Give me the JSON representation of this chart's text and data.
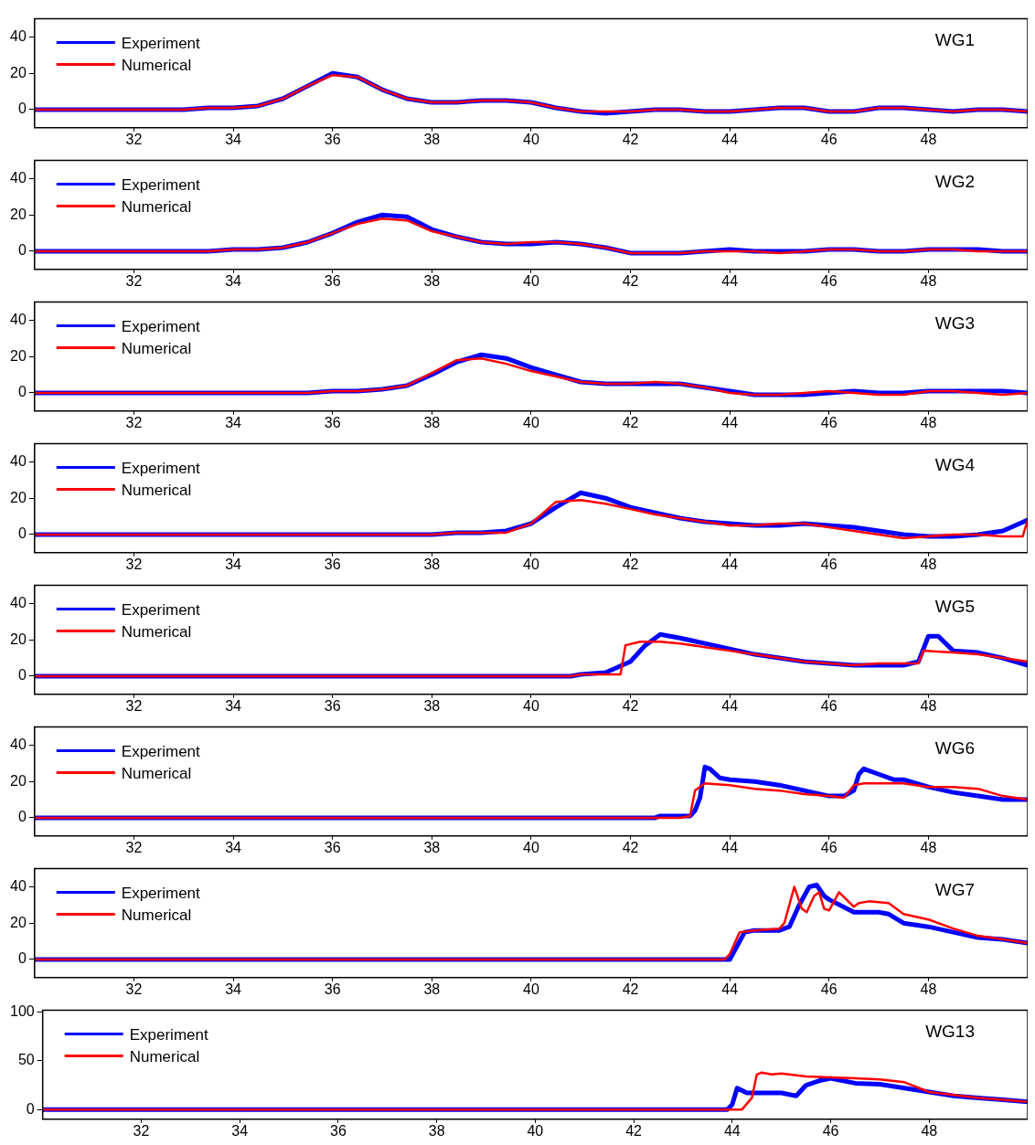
{
  "chart_data": [
    {
      "type": "line",
      "annotations": [
        "WG1"
      ],
      "x": [
        30,
        30.5,
        31,
        31.5,
        32,
        32.5,
        33,
        33.5,
        34,
        34.5,
        35,
        35.5,
        36,
        36.5,
        37,
        37.5,
        38,
        38.5,
        39,
        39.5,
        40,
        40.5,
        41,
        41.5,
        42,
        42.5,
        43,
        43.5,
        44,
        44.5,
        45,
        45.5,
        46,
        46.5,
        47,
        47.5,
        48,
        48.5,
        49,
        49.5,
        50
      ],
      "xlim": [
        30,
        50
      ],
      "xticks": [
        32,
        34,
        36,
        38,
        40,
        42,
        44,
        46,
        48
      ],
      "ylim": [
        -10,
        50
      ],
      "yticks": [
        0,
        20,
        40
      ],
      "grid": false,
      "legend": "top left",
      "marker": "none",
      "line_style": "solid",
      "series": [
        {
          "name": "Experiment",
          "color": "#0000ff",
          "values": [
            0,
            0,
            0,
            0,
            0,
            0,
            0,
            1,
            1,
            2,
            6,
            13,
            20,
            18,
            11,
            6,
            4,
            4,
            5,
            5,
            4,
            1,
            -1,
            -2,
            -1,
            0,
            0,
            -1,
            -1,
            0,
            1,
            1,
            -1,
            -1,
            1,
            1,
            0,
            -1,
            0,
            0,
            -1
          ]
        },
        {
          "name": "Numerical",
          "color": "#ff0000",
          "values": [
            0,
            0,
            0,
            0,
            0,
            0,
            0,
            1,
            1,
            2,
            6,
            13,
            19,
            18,
            11,
            6,
            4,
            4,
            5,
            5,
            4,
            1,
            -1,
            -1,
            -1,
            0,
            0,
            -1,
            -1,
            0,
            1,
            1,
            -1,
            -1,
            1,
            1,
            0,
            -1,
            0,
            0,
            -1
          ]
        }
      ]
    },
    {
      "type": "line",
      "annotations": [
        "WG2"
      ],
      "x": [
        30,
        30.5,
        31,
        31.5,
        32,
        32.5,
        33,
        33.5,
        34,
        34.5,
        35,
        35.5,
        36,
        36.5,
        37,
        37.5,
        38,
        38.5,
        39,
        39.5,
        40,
        40.5,
        41,
        41.5,
        42,
        42.5,
        43,
        43.5,
        44,
        44.5,
        45,
        45.5,
        46,
        46.5,
        47,
        47.5,
        48,
        48.5,
        49,
        49.5,
        50
      ],
      "xlim": [
        30,
        50
      ],
      "xticks": [
        32,
        34,
        36,
        38,
        40,
        42,
        44,
        46,
        48
      ],
      "ylim": [
        -10,
        50
      ],
      "yticks": [
        0,
        20,
        40
      ],
      "grid": false,
      "legend": "top left",
      "marker": "none",
      "line_style": "solid",
      "series": [
        {
          "name": "Experiment",
          "color": "#0000ff",
          "values": [
            0,
            0,
            0,
            0,
            0,
            0,
            0,
            0,
            1,
            1,
            2,
            5,
            10,
            16,
            20,
            19,
            12,
            8,
            5,
            4,
            4,
            5,
            4,
            2,
            -1,
            -1,
            -1,
            0,
            1,
            0,
            0,
            0,
            1,
            1,
            0,
            0,
            1,
            1,
            1,
            0,
            0
          ]
        },
        {
          "name": "Numerical",
          "color": "#ff0000",
          "values": [
            0,
            0,
            0,
            0,
            0,
            0,
            0,
            0,
            1,
            1,
            2,
            5,
            10,
            15,
            18,
            17,
            11,
            8,
            5,
            4,
            5,
            5,
            4,
            2,
            -1,
            -1,
            -1,
            0,
            0,
            0,
            -1,
            0,
            1,
            1,
            0,
            0,
            1,
            1,
            0,
            0,
            0
          ]
        }
      ]
    },
    {
      "type": "line",
      "annotations": [
        "WG3"
      ],
      "x": [
        30,
        30.5,
        31,
        31.5,
        32,
        32.5,
        33,
        33.5,
        34,
        34.5,
        35,
        35.5,
        36,
        36.5,
        37,
        37.5,
        38,
        38.5,
        39,
        39.5,
        40,
        40.5,
        41,
        41.5,
        42,
        42.5,
        43,
        43.5,
        44,
        44.5,
        45,
        45.5,
        46,
        46.5,
        47,
        47.5,
        48,
        48.5,
        49,
        49.5,
        50
      ],
      "xlim": [
        30,
        50
      ],
      "xticks": [
        32,
        34,
        36,
        38,
        40,
        42,
        44,
        46,
        48
      ],
      "ylim": [
        -10,
        50
      ],
      "yticks": [
        0,
        20,
        40
      ],
      "grid": false,
      "legend": "top left",
      "marker": "none",
      "line_style": "solid",
      "series": [
        {
          "name": "Experiment",
          "color": "#0000ff",
          "values": [
            0,
            0,
            0,
            0,
            0,
            0,
            0,
            0,
            0,
            0,
            0,
            0,
            1,
            1,
            2,
            4,
            10,
            17,
            21,
            19,
            14,
            10,
            6,
            5,
            5,
            5,
            5,
            3,
            1,
            -1,
            -1,
            -1,
            0,
            1,
            0,
            0,
            1,
            1,
            1,
            1,
            0
          ]
        },
        {
          "name": "Numerical",
          "color": "#ff0000",
          "values": [
            0,
            0,
            0,
            0,
            0,
            0,
            0,
            0,
            0,
            0,
            0,
            0,
            1,
            1,
            2,
            4,
            11,
            18,
            19,
            16,
            12,
            9,
            6,
            5,
            5,
            6,
            5,
            3,
            0,
            -1,
            -1,
            0,
            1,
            0,
            -1,
            -1,
            1,
            1,
            0,
            -1,
            0
          ]
        }
      ]
    },
    {
      "type": "line",
      "annotations": [
        "WG4"
      ],
      "xlim": [
        30,
        50
      ],
      "xticks": [
        32,
        34,
        36,
        38,
        40,
        42,
        44,
        46,
        48
      ],
      "ylim": [
        -10,
        50
      ],
      "yticks": [
        0,
        20,
        40
      ],
      "grid": false,
      "legend": "top left",
      "marker": "none",
      "line_style": "solid",
      "series": [
        {
          "name": "Experiment",
          "color": "#0000ff",
          "x": [
            30,
            38,
            38.5,
            39,
            39.5,
            40,
            40.5,
            41,
            41.5,
            42,
            42.5,
            43,
            43.5,
            44,
            44.5,
            45,
            45.5,
            46,
            46.5,
            47,
            47.5,
            48,
            48.5,
            49,
            49.5,
            50
          ],
          "values": [
            0,
            0,
            1,
            1,
            2,
            6,
            15,
            23,
            20,
            15,
            12,
            9,
            7,
            6,
            5,
            5,
            6,
            5,
            4,
            2,
            0,
            -1,
            -1,
            0,
            2,
            8
          ]
        },
        {
          "name": "Numerical",
          "color": "#ff0000",
          "x": [
            30,
            38,
            38.5,
            39,
            39.5,
            40,
            40.5,
            41,
            41.5,
            42,
            42.5,
            43,
            43.5,
            44,
            44.5,
            45,
            45.5,
            46,
            46.5,
            47,
            47.5,
            48,
            48.5,
            49,
            49.5,
            49.9,
            50
          ],
          "values": [
            0,
            0,
            1,
            1,
            1,
            6,
            18,
            19,
            17,
            14,
            11,
            9,
            7,
            5,
            5,
            6,
            6,
            4,
            2,
            0,
            -2,
            -1,
            0,
            0,
            -1,
            -1,
            8
          ]
        }
      ]
    },
    {
      "type": "line",
      "annotations": [
        "WG5"
      ],
      "xlim": [
        30,
        50
      ],
      "xticks": [
        32,
        34,
        36,
        38,
        40,
        42,
        44,
        46,
        48
      ],
      "ylim": [
        -10,
        50
      ],
      "yticks": [
        0,
        20,
        40
      ],
      "grid": false,
      "legend": "top left",
      "marker": "none",
      "line_style": "solid",
      "series": [
        {
          "name": "Experiment",
          "color": "#0000ff",
          "x": [
            30,
            40.8,
            41,
            41.5,
            42,
            42.3,
            42.6,
            43,
            43.5,
            44,
            44.5,
            45,
            45.5,
            46,
            46.5,
            47,
            47.5,
            47.8,
            48,
            48.2,
            48.5,
            49,
            49.5,
            50
          ],
          "values": [
            0,
            0,
            1,
            2,
            8,
            17,
            23,
            21,
            18,
            15,
            12,
            10,
            8,
            7,
            6,
            6,
            6,
            8,
            22,
            22,
            14,
            13,
            10,
            6
          ]
        },
        {
          "name": "Numerical",
          "color": "#ff0000",
          "x": [
            30,
            40.8,
            41,
            41.8,
            41.9,
            42.2,
            42.6,
            43,
            43.5,
            44,
            44.5,
            45,
            45.5,
            46,
            46.5,
            47,
            47.8,
            47.9,
            48.5,
            49,
            49.5,
            50
          ],
          "values": [
            0,
            0,
            1,
            1,
            17,
            19,
            19,
            18,
            16,
            14,
            12,
            10,
            8,
            7,
            6,
            7,
            7,
            14,
            13,
            12,
            10,
            8
          ]
        }
      ]
    },
    {
      "type": "line",
      "annotations": [
        "WG6"
      ],
      "xlim": [
        30,
        50
      ],
      "xticks": [
        32,
        34,
        36,
        38,
        40,
        42,
        44,
        46,
        48
      ],
      "ylim": [
        -10,
        50
      ],
      "yticks": [
        0,
        20,
        40
      ],
      "grid": false,
      "legend": "top left",
      "marker": "none",
      "line_style": "solid",
      "series": [
        {
          "name": "Experiment",
          "color": "#0000ff",
          "x": [
            30,
            42.5,
            42.6,
            43.2,
            43.3,
            43.4,
            43.5,
            43.6,
            43.8,
            44,
            44.5,
            45,
            45.5,
            46,
            46.3,
            46.5,
            46.6,
            46.7,
            47,
            47.3,
            47.5,
            48,
            48.5,
            49,
            49.5,
            50
          ],
          "values": [
            0,
            0,
            1,
            1,
            4,
            11,
            28,
            27,
            22,
            21,
            20,
            18,
            15,
            12,
            12,
            15,
            24,
            27,
            24,
            21,
            21,
            17,
            14,
            12,
            10,
            10
          ]
        },
        {
          "name": "Numerical",
          "color": "#ff0000",
          "x": [
            30,
            43,
            43.2,
            43.3,
            43.5,
            44,
            44.5,
            45,
            45.5,
            46,
            46.3,
            46.5,
            46.7,
            47,
            47.5,
            48,
            48.5,
            49,
            49.5,
            50
          ],
          "values": [
            0,
            0,
            1,
            15,
            19,
            18,
            16,
            15,
            13,
            12,
            11,
            18,
            19,
            19,
            19,
            17,
            17,
            16,
            12,
            10
          ]
        }
      ]
    },
    {
      "type": "line",
      "annotations": [
        "WG7"
      ],
      "xlim": [
        30,
        50
      ],
      "xticks": [
        32,
        34,
        36,
        38,
        40,
        42,
        44,
        46,
        48
      ],
      "ylim": [
        -10,
        50
      ],
      "yticks": [
        0,
        20,
        40
      ],
      "grid": false,
      "legend": "top left",
      "marker": "none",
      "line_style": "solid",
      "series": [
        {
          "name": "Experiment",
          "color": "#0000ff",
          "x": [
            30,
            44,
            44.1,
            44.3,
            44.5,
            45,
            45.2,
            45.4,
            45.6,
            45.75,
            45.9,
            46,
            46.5,
            47,
            47.2,
            47.5,
            48,
            48.5,
            49,
            49.5,
            50
          ],
          "values": [
            0,
            0,
            5,
            15,
            16,
            16,
            18,
            30,
            40,
            41,
            35,
            33,
            26,
            26,
            25,
            20,
            18,
            15,
            12,
            11,
            9
          ]
        },
        {
          "name": "Numerical",
          "color": "#ff0000",
          "x": [
            30,
            43.9,
            44,
            44.2,
            44.5,
            45,
            45.1,
            45.3,
            45.45,
            45.55,
            45.7,
            45.8,
            45.9,
            46,
            46.2,
            46.5,
            46.6,
            46.8,
            47.2,
            47.5,
            48,
            48.5,
            49,
            49.5,
            50
          ],
          "values": [
            0,
            0,
            3,
            15,
            16,
            17,
            20,
            40,
            28,
            26,
            35,
            37,
            28,
            27,
            37,
            29,
            31,
            32,
            31,
            25,
            22,
            17,
            13,
            11,
            9
          ]
        }
      ]
    },
    {
      "type": "line",
      "annotations": [
        "WG13"
      ],
      "xlim": [
        30,
        50
      ],
      "xticks": [
        32,
        34,
        36,
        38,
        40,
        42,
        44,
        46,
        48
      ],
      "ylim": [
        -10,
        102
      ],
      "yticks": [
        0,
        50,
        100
      ],
      "grid": false,
      "legend": "top left",
      "marker": "none",
      "line_style": "solid",
      "series": [
        {
          "name": "Experiment",
          "color": "#0000ff",
          "x": [
            30,
            43.9,
            44,
            44.1,
            44.3,
            45,
            45.3,
            45.5,
            45.8,
            46,
            46.5,
            47,
            47.5,
            48,
            48.5,
            49,
            49.5,
            50
          ],
          "values": [
            0,
            0,
            5,
            22,
            17,
            17,
            14,
            25,
            30,
            32,
            27,
            26,
            22,
            18,
            14,
            12,
            10,
            8
          ]
        },
        {
          "name": "Numerical",
          "color": "#ff0000",
          "x": [
            30,
            44.2,
            44.4,
            44.5,
            44.6,
            44.8,
            45,
            45.5,
            46,
            46.5,
            47,
            47.5,
            48,
            48.5,
            49,
            49.5,
            50
          ],
          "values": [
            0,
            0,
            12,
            36,
            38,
            36,
            37,
            34,
            33,
            32,
            31,
            28,
            18,
            15,
            12,
            10,
            8
          ]
        }
      ]
    }
  ]
}
